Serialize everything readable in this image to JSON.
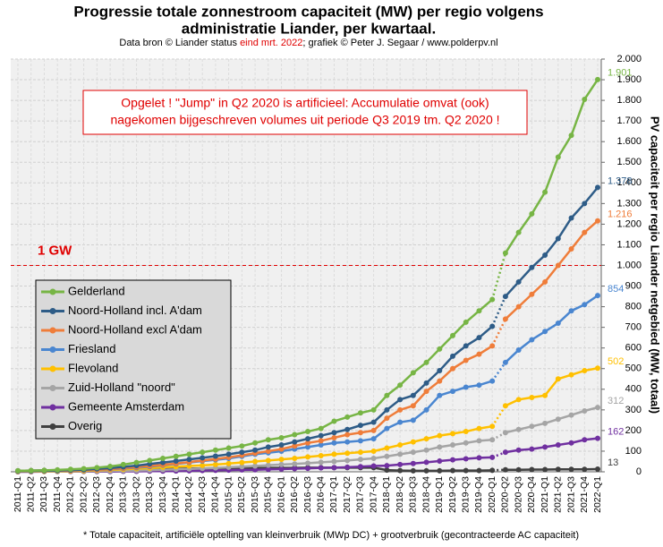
{
  "chart_data": {
    "type": "line",
    "title": [
      "Progressie totale zonnestroom capaciteit (MW) per regio volgens",
      "administratie  Liander, per kwartaal."
    ],
    "subtitle": [
      "Data bron © Liander status ",
      "eind mrt. 2022",
      "; grafiek © Peter J. Segaar / www.polderpv.nl"
    ],
    "annotation": [
      "Opgelet ! \"Jump\" in Q2 2020 is artificieel: Accumulatie omvat (ook)",
      "nagekomen  bijgeschreven volumes uit periode Q3 2019 tm. Q2 2020 !"
    ],
    "reference_line": {
      "value": 1000,
      "label": "1 GW"
    },
    "y_label": "PV capaciteit per regio Liander netgebied (MW, totaal)",
    "footnote": "* Totale capaciteit, artificiële optelling van kleinverbruik (MWp DC) + grootverbruik (gecontracteerde AC capaciteit)",
    "jump_after": "2020-Q1",
    "categories": [
      "2011-Q1",
      "2011-Q2",
      "2011-Q3",
      "2011-Q4",
      "2012-Q1",
      "2012-Q2",
      "2012-Q3",
      "2012-Q4",
      "2013-Q1",
      "2013-Q2",
      "2013-Q3",
      "2013-Q4",
      "2014-Q1",
      "2014-Q2",
      "2014-Q3",
      "2014-Q4",
      "2015-Q1",
      "2015-Q2",
      "2015-Q3",
      "2015-Q4",
      "2016-Q1",
      "2016-Q2",
      "2016-Q3",
      "2016-Q4",
      "2017-Q1",
      "2017-Q2",
      "2017-Q3",
      "2017-Q4",
      "2018-Q1",
      "2018-Q2",
      "2018-Q3",
      "2018-Q4",
      "2019-Q1",
      "2019-Q2",
      "2019-Q3",
      "2019-Q4",
      "2020-Q1",
      "2020-Q2",
      "2020-Q3",
      "2020-Q4",
      "2021-Q1",
      "2021-Q2",
      "2021-Q3",
      "2021-Q4",
      "2022-Q1"
    ],
    "series": [
      {
        "name": "Gelderland",
        "color": "#77b545",
        "values": [
          5,
          6,
          7,
          9,
          12,
          15,
          20,
          26,
          35,
          45,
          55,
          65,
          75,
          85,
          95,
          105,
          115,
          125,
          140,
          155,
          165,
          180,
          195,
          210,
          245,
          265,
          285,
          300,
          370,
          420,
          480,
          530,
          595,
          660,
          725,
          780,
          835,
          1060,
          1160,
          1250,
          1355,
          1525,
          1630,
          1805,
          1901
        ],
        "value_labels": [
          null,
          null,
          null,
          null,
          null,
          null,
          null,
          null,
          null,
          null,
          null,
          null,
          null,
          null,
          null,
          null,
          null,
          null,
          null,
          null,
          null,
          null,
          null,
          null,
          null,
          null,
          null,
          null,
          null,
          null,
          null,
          null,
          null,
          null,
          null,
          null,
          null,
          null,
          null,
          null,
          null,
          null,
          null,
          null,
          "1.901"
        ]
      },
      {
        "name": "Noord-Holland incl. A'dam",
        "color": "#2e5c87",
        "values": [
          3,
          4,
          5,
          6,
          8,
          10,
          14,
          18,
          24,
          30,
          38,
          45,
          52,
          60,
          68,
          76,
          85,
          95,
          105,
          120,
          130,
          145,
          160,
          175,
          190,
          205,
          225,
          240,
          300,
          350,
          370,
          430,
          490,
          560,
          610,
          650,
          705,
          850,
          920,
          990,
          1050,
          1130,
          1230,
          1300,
          1378
        ],
        "value_labels": [
          null,
          null,
          null,
          null,
          null,
          null,
          null,
          null,
          null,
          null,
          null,
          null,
          null,
          null,
          null,
          null,
          null,
          null,
          null,
          null,
          null,
          null,
          null,
          null,
          null,
          null,
          null,
          null,
          null,
          null,
          null,
          null,
          null,
          null,
          null,
          null,
          null,
          null,
          null,
          null,
          null,
          null,
          null,
          null,
          "1.378"
        ]
      },
      {
        "name": "Noord-Holland excl A'dam",
        "color": "#ef7d3a",
        "values": [
          2,
          3,
          4,
          5,
          6,
          8,
          10,
          13,
          18,
          23,
          28,
          34,
          40,
          47,
          55,
          62,
          70,
          80,
          90,
          100,
          110,
          125,
          140,
          150,
          165,
          180,
          190,
          200,
          260,
          300,
          320,
          390,
          440,
          500,
          540,
          570,
          610,
          740,
          800,
          860,
          920,
          1000,
          1080,
          1160,
          1216
        ],
        "value_labels": [
          null,
          null,
          null,
          null,
          null,
          null,
          null,
          null,
          null,
          null,
          null,
          null,
          null,
          null,
          null,
          null,
          null,
          null,
          null,
          null,
          null,
          null,
          null,
          null,
          null,
          null,
          null,
          null,
          null,
          null,
          null,
          null,
          null,
          null,
          null,
          null,
          null,
          null,
          null,
          null,
          null,
          null,
          null,
          null,
          "1.216"
        ]
      },
      {
        "name": "Friesland",
        "color": "#4a86d0",
        "values": [
          2,
          3,
          4,
          5,
          6,
          8,
          10,
          12,
          16,
          20,
          25,
          32,
          38,
          45,
          52,
          58,
          65,
          75,
          85,
          92,
          100,
          110,
          120,
          130,
          140,
          145,
          150,
          160,
          210,
          240,
          250,
          300,
          370,
          390,
          410,
          420,
          440,
          530,
          590,
          640,
          680,
          720,
          780,
          810,
          854
        ]
      },
      {
        "name": "Flevoland",
        "color": "#ffc000",
        "values": [
          1,
          2,
          2,
          3,
          4,
          5,
          7,
          9,
          12,
          15,
          18,
          22,
          25,
          28,
          31,
          35,
          40,
          45,
          50,
          55,
          60,
          65,
          72,
          78,
          85,
          90,
          95,
          100,
          115,
          130,
          145,
          160,
          175,
          185,
          195,
          210,
          220,
          320,
          350,
          360,
          370,
          450,
          470,
          490,
          502
        ]
      },
      {
        "name": "Zuid-Holland \"noord\"",
        "color": "#a5a5a5",
        "values": [
          1,
          1,
          1,
          1,
          2,
          2,
          3,
          4,
          5,
          6,
          8,
          10,
          12,
          14,
          16,
          19,
          22,
          25,
          28,
          32,
          35,
          38,
          42,
          46,
          50,
          55,
          60,
          65,
          75,
          85,
          95,
          105,
          120,
          130,
          140,
          150,
          155,
          190,
          205,
          220,
          235,
          255,
          275,
          295,
          312
        ]
      },
      {
        "name": "Gemeente Amsterdam",
        "color": "#7030a0",
        "values": [
          0,
          0,
          1,
          1,
          1,
          1,
          1,
          1,
          2,
          2,
          3,
          3,
          4,
          5,
          6,
          7,
          8,
          9,
          10,
          12,
          13,
          15,
          17,
          19,
          20,
          22,
          25,
          28,
          30,
          35,
          40,
          46,
          52,
          58,
          63,
          68,
          70,
          95,
          105,
          110,
          120,
          130,
          140,
          155,
          162
        ]
      },
      {
        "name": "Overig",
        "color": "#404040",
        "values": [
          5,
          6,
          7,
          8,
          9,
          10,
          11,
          12,
          13,
          14,
          14,
          15,
          15,
          16,
          16,
          17,
          17,
          18,
          18,
          19,
          19,
          19,
          20,
          20,
          20,
          20,
          20,
          20,
          8,
          6,
          5,
          5,
          5,
          6,
          6,
          6,
          7,
          10,
          10,
          11,
          11,
          12,
          12,
          12,
          13
        ]
      }
    ],
    "ylim": [
      0,
      2000
    ],
    "yticks": [
      0,
      100,
      200,
      300,
      400,
      500,
      600,
      700,
      800,
      900,
      {
        "value": 1000,
        "label": "1.000"
      },
      {
        "value": 1100,
        "label": "1.100"
      },
      {
        "value": 1200,
        "label": "1.200"
      },
      {
        "value": 1300,
        "label": "1.300"
      },
      {
        "value": 1400,
        "label": "1.400"
      },
      {
        "value": 1500,
        "label": "1.500"
      },
      {
        "value": 1600,
        "label": "1.600"
      },
      {
        "value": 1700,
        "label": "1.700"
      },
      {
        "value": 1800,
        "label": "1.800"
      },
      {
        "value": 1900,
        "label": "1.900"
      },
      {
        "value": 2000,
        "label": "2.000"
      }
    ],
    "grid": true,
    "legend": "left"
  }
}
